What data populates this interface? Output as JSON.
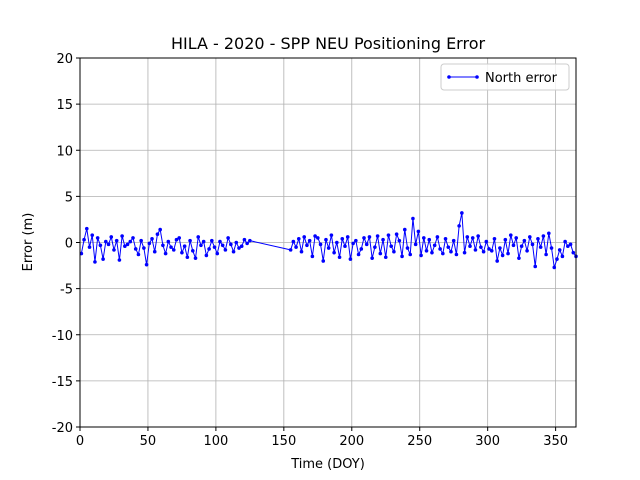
{
  "chart_data": {
    "type": "line",
    "title": "HILA - 2020 - SPP NEU Positioning Error",
    "x_label": "Time (DOY)",
    "y_label": "Error (m)",
    "xlim": [
      0,
      365
    ],
    "xticks": [
      0,
      50,
      100,
      150,
      200,
      250,
      300,
      350
    ],
    "ylim": [
      -20,
      20
    ],
    "yticks": [
      -20,
      -15,
      -10,
      -5,
      0,
      5,
      10,
      15,
      20
    ],
    "grid": true,
    "legend": "upper right",
    "x": [
      1,
      3,
      5,
      7,
      9,
      11,
      13,
      15,
      17,
      19,
      21,
      23,
      25,
      27,
      29,
      31,
      33,
      35,
      37,
      39,
      41,
      43,
      45,
      47,
      49,
      51,
      53,
      55,
      57,
      59,
      61,
      63,
      65,
      67,
      69,
      71,
      73,
      75,
      77,
      79,
      81,
      83,
      85,
      87,
      89,
      91,
      93,
      95,
      97,
      99,
      101,
      103,
      105,
      107,
      109,
      111,
      113,
      115,
      117,
      119,
      121,
      123,
      125,
      155,
      157,
      159,
      161,
      163,
      165,
      167,
      169,
      171,
      173,
      175,
      177,
      179,
      181,
      183,
      185,
      187,
      189,
      191,
      193,
      195,
      197,
      199,
      201,
      203,
      205,
      207,
      209,
      211,
      213,
      215,
      217,
      219,
      221,
      223,
      225,
      227,
      229,
      231,
      233,
      235,
      237,
      239,
      241,
      243,
      245,
      247,
      249,
      251,
      253,
      255,
      257,
      259,
      261,
      263,
      265,
      267,
      269,
      271,
      273,
      275,
      277,
      279,
      281,
      283,
      285,
      287,
      289,
      291,
      293,
      295,
      297,
      299,
      301,
      303,
      305,
      307,
      309,
      311,
      313,
      315,
      317,
      319,
      321,
      323,
      325,
      327,
      329,
      331,
      333,
      335,
      337,
      339,
      341,
      343,
      345,
      347,
      349,
      351,
      353,
      355,
      357,
      359,
      361,
      363,
      365
    ],
    "series": [
      {
        "name": "North error",
        "color": "#0000ff",
        "values": [
          -1.2,
          0.3,
          1.5,
          -0.5,
          0.8,
          -2.1,
          0.5,
          -0.3,
          -1.8,
          0.1,
          -0.2,
          0.6,
          -0.8,
          0.2,
          -1.9,
          0.7,
          -0.4,
          -0.2,
          0.1,
          0.5,
          -0.7,
          -1.3,
          0.2,
          -0.6,
          -2.4,
          -0.1,
          0.4,
          -1.0,
          0.9,
          1.4,
          -0.3,
          -1.2,
          0.1,
          -0.5,
          -0.8,
          0.3,
          0.5,
          -1.1,
          -0.4,
          -1.6,
          0.2,
          -0.9,
          -1.7,
          0.6,
          -0.3,
          0.1,
          -1.4,
          -0.7,
          0.2,
          -0.5,
          -1.2,
          0.1,
          -0.3,
          -0.8,
          0.5,
          -0.2,
          -1.0,
          0.0,
          -0.6,
          -0.4,
          0.3,
          -0.1,
          0.2,
          -0.8,
          0.1,
          -0.5,
          0.4,
          -1.0,
          0.6,
          -0.3,
          0.2,
          -1.5,
          0.7,
          0.5,
          -0.2,
          -2.0,
          0.3,
          -0.6,
          0.8,
          -1.1,
          0.0,
          -1.6,
          0.4,
          -0.4,
          0.6,
          -1.8,
          -0.1,
          0.2,
          -1.3,
          -0.7,
          0.5,
          -0.2,
          0.6,
          -1.7,
          -0.5,
          0.7,
          -1.2,
          0.3,
          -1.6,
          0.8,
          -0.4,
          -1.0,
          0.9,
          0.2,
          -1.5,
          1.4,
          -0.6,
          -1.3,
          2.6,
          -0.2,
          1.2,
          -1.4,
          0.5,
          -0.9,
          0.3,
          -1.1,
          -0.3,
          0.6,
          -0.7,
          -1.2,
          0.4,
          -0.5,
          -1.0,
          0.2,
          -1.3,
          1.8,
          3.2,
          -1.1,
          0.6,
          -0.4,
          0.5,
          -0.8,
          0.7,
          -0.5,
          -1.0,
          0.1,
          -0.7,
          -0.9,
          0.4,
          -2.0,
          -0.6,
          -1.4,
          0.3,
          -1.2,
          0.8,
          -0.3,
          0.5,
          -1.7,
          -0.4,
          0.2,
          -0.9,
          0.6,
          -0.2,
          -2.6,
          0.4,
          -0.5,
          0.7,
          -1.3,
          1.0,
          -0.6,
          -2.7,
          -1.8,
          -0.8,
          -1.5,
          0.1,
          -0.4,
          -0.2,
          -1.1,
          -1.5
        ]
      }
    ]
  }
}
